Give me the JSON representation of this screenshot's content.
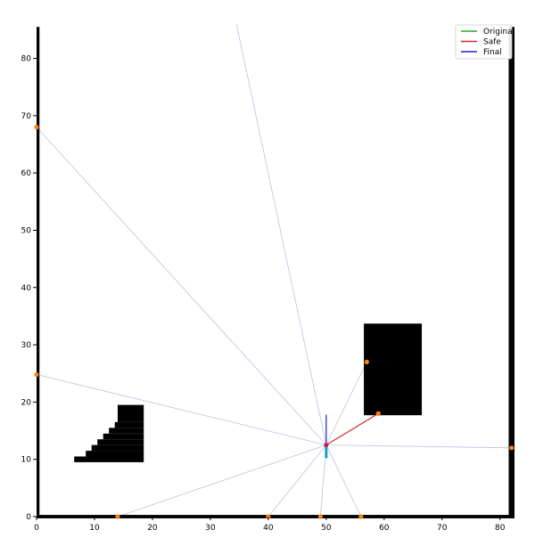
{
  "chart_data": {
    "type": "scatter",
    "xlim": [
      0,
      82.5
    ],
    "ylim": [
      0,
      86
    ],
    "x_ticks": [
      0,
      10,
      20,
      30,
      40,
      50,
      60,
      70,
      80
    ],
    "y_ticks": [
      0,
      10,
      20,
      30,
      40,
      50,
      60,
      70,
      80
    ],
    "grid": false,
    "legend": {
      "placement": "top-right",
      "entries": [
        {
          "label": "Original",
          "color": "#2ca02c"
        },
        {
          "label": "Safe",
          "color": "#d62728"
        },
        {
          "label": "Final",
          "color": "#1f1fd0"
        }
      ]
    },
    "robot": {
      "x": 50.0,
      "y": 12.5,
      "trail_y": [
        10.2,
        12.5
      ]
    },
    "paths": {
      "original": {
        "color": "#2ca02c",
        "points": [
          [
            50.0,
            12.5
          ],
          [
            50.0,
            12.5
          ]
        ]
      },
      "safe": {
        "color": "#d62728",
        "points": [
          [
            50.0,
            12.5
          ],
          [
            59.0,
            18.0
          ]
        ]
      },
      "final": {
        "color": "#1f1fd0",
        "points": [
          [
            50.0,
            12.5
          ],
          [
            50.0,
            17.8
          ]
        ]
      }
    },
    "obstacles": [
      {
        "name": "wall-left",
        "x": [
          0.0,
          0.5
        ],
        "y": [
          0.0,
          85.5
        ]
      },
      {
        "name": "wall-bottom",
        "x": [
          0.0,
          82.5
        ],
        "y": [
          -0.3,
          0.3
        ]
      },
      {
        "name": "wall-right",
        "x": [
          81.5,
          82.5
        ],
        "y": [
          0.0,
          85.5
        ]
      },
      {
        "name": "block-right",
        "x": [
          56.5,
          66.5
        ],
        "y": [
          17.7,
          33.7
        ]
      }
    ],
    "staircase_obstacle": [
      {
        "x": [
          6.5,
          18.5
        ],
        "y": [
          9.5,
          10.5
        ]
      },
      {
        "x": [
          8.5,
          18.5
        ],
        "y": [
          10.5,
          11.5
        ]
      },
      {
        "x": [
          9.5,
          18.5
        ],
        "y": [
          11.5,
          12.5
        ]
      },
      {
        "x": [
          10.5,
          18.5
        ],
        "y": [
          12.5,
          13.5
        ]
      },
      {
        "x": [
          11.5,
          18.5
        ],
        "y": [
          13.5,
          14.5
        ]
      },
      {
        "x": [
          12.5,
          18.5
        ],
        "y": [
          14.5,
          15.5
        ]
      },
      {
        "x": [
          13.5,
          18.5
        ],
        "y": [
          15.5,
          16.5
        ]
      },
      {
        "x": [
          14.0,
          18.5
        ],
        "y": [
          16.5,
          19.5
        ]
      }
    ],
    "scan_hits": [
      {
        "x": 0.0,
        "y": 68.0
      },
      {
        "x": 0.0,
        "y": 24.8
      },
      {
        "x": 14.0,
        "y": 0.0
      },
      {
        "x": 40.0,
        "y": 0.0
      },
      {
        "x": 49.0,
        "y": 0.0
      },
      {
        "x": 56.0,
        "y": 0.0
      },
      {
        "x": 82.0,
        "y": 12.0
      },
      {
        "x": 57.0,
        "y": 27.0
      },
      {
        "x": 59.0,
        "y": 18.0
      }
    ],
    "scan_rays_to": [
      {
        "x": 0.0,
        "y": 68.0
      },
      {
        "x": 0.0,
        "y": 24.8
      },
      {
        "x": 14.0,
        "y": 0.0
      },
      {
        "x": 40.0,
        "y": 0.0
      },
      {
        "x": 49.0,
        "y": 0.0
      },
      {
        "x": 56.0,
        "y": 0.0
      },
      {
        "x": 82.0,
        "y": 12.0
      },
      {
        "x": 57.0,
        "y": 27.0
      },
      {
        "x": 59.0,
        "y": 18.0
      },
      {
        "x": 34.5,
        "y": 86.0
      }
    ],
    "colors": {
      "obstacle": "#000000",
      "ray": "#b8c4e0",
      "hit": "#ff7f0e",
      "robot": "#1f9ec4"
    }
  }
}
